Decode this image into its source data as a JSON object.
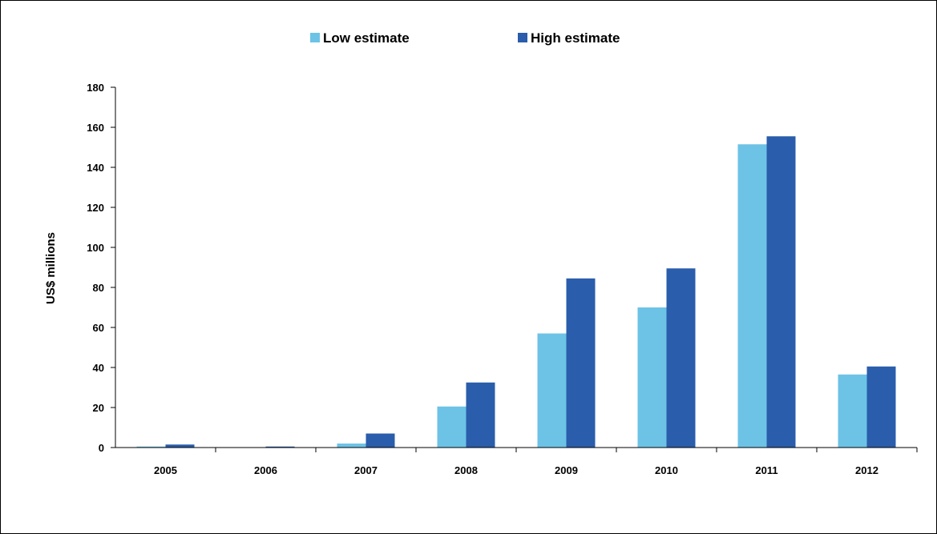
{
  "chart_data": {
    "type": "bar",
    "title": "",
    "xlabel": "",
    "ylabel": "US$ millions",
    "ylim": [
      0,
      180
    ],
    "yticks": [
      "0",
      "20",
      "40",
      "60",
      "80",
      "100",
      "120",
      "140",
      "160",
      "180"
    ],
    "categories": [
      "2005",
      "2006",
      "2007",
      "2008",
      "2009",
      "2010",
      "2011",
      "2012"
    ],
    "series": [
      {
        "name": "Low estimate",
        "color": "#6CC3E6",
        "values": [
          0.5,
          0,
          2,
          20.5,
          57,
          70,
          151.5,
          36.5
        ]
      },
      {
        "name": "High estimate",
        "color": "#2A5DAB",
        "values": [
          1.5,
          0.5,
          7,
          32.5,
          84.5,
          89.5,
          155.5,
          40.5
        ]
      }
    ],
    "legend": "top-center",
    "grid": false
  }
}
